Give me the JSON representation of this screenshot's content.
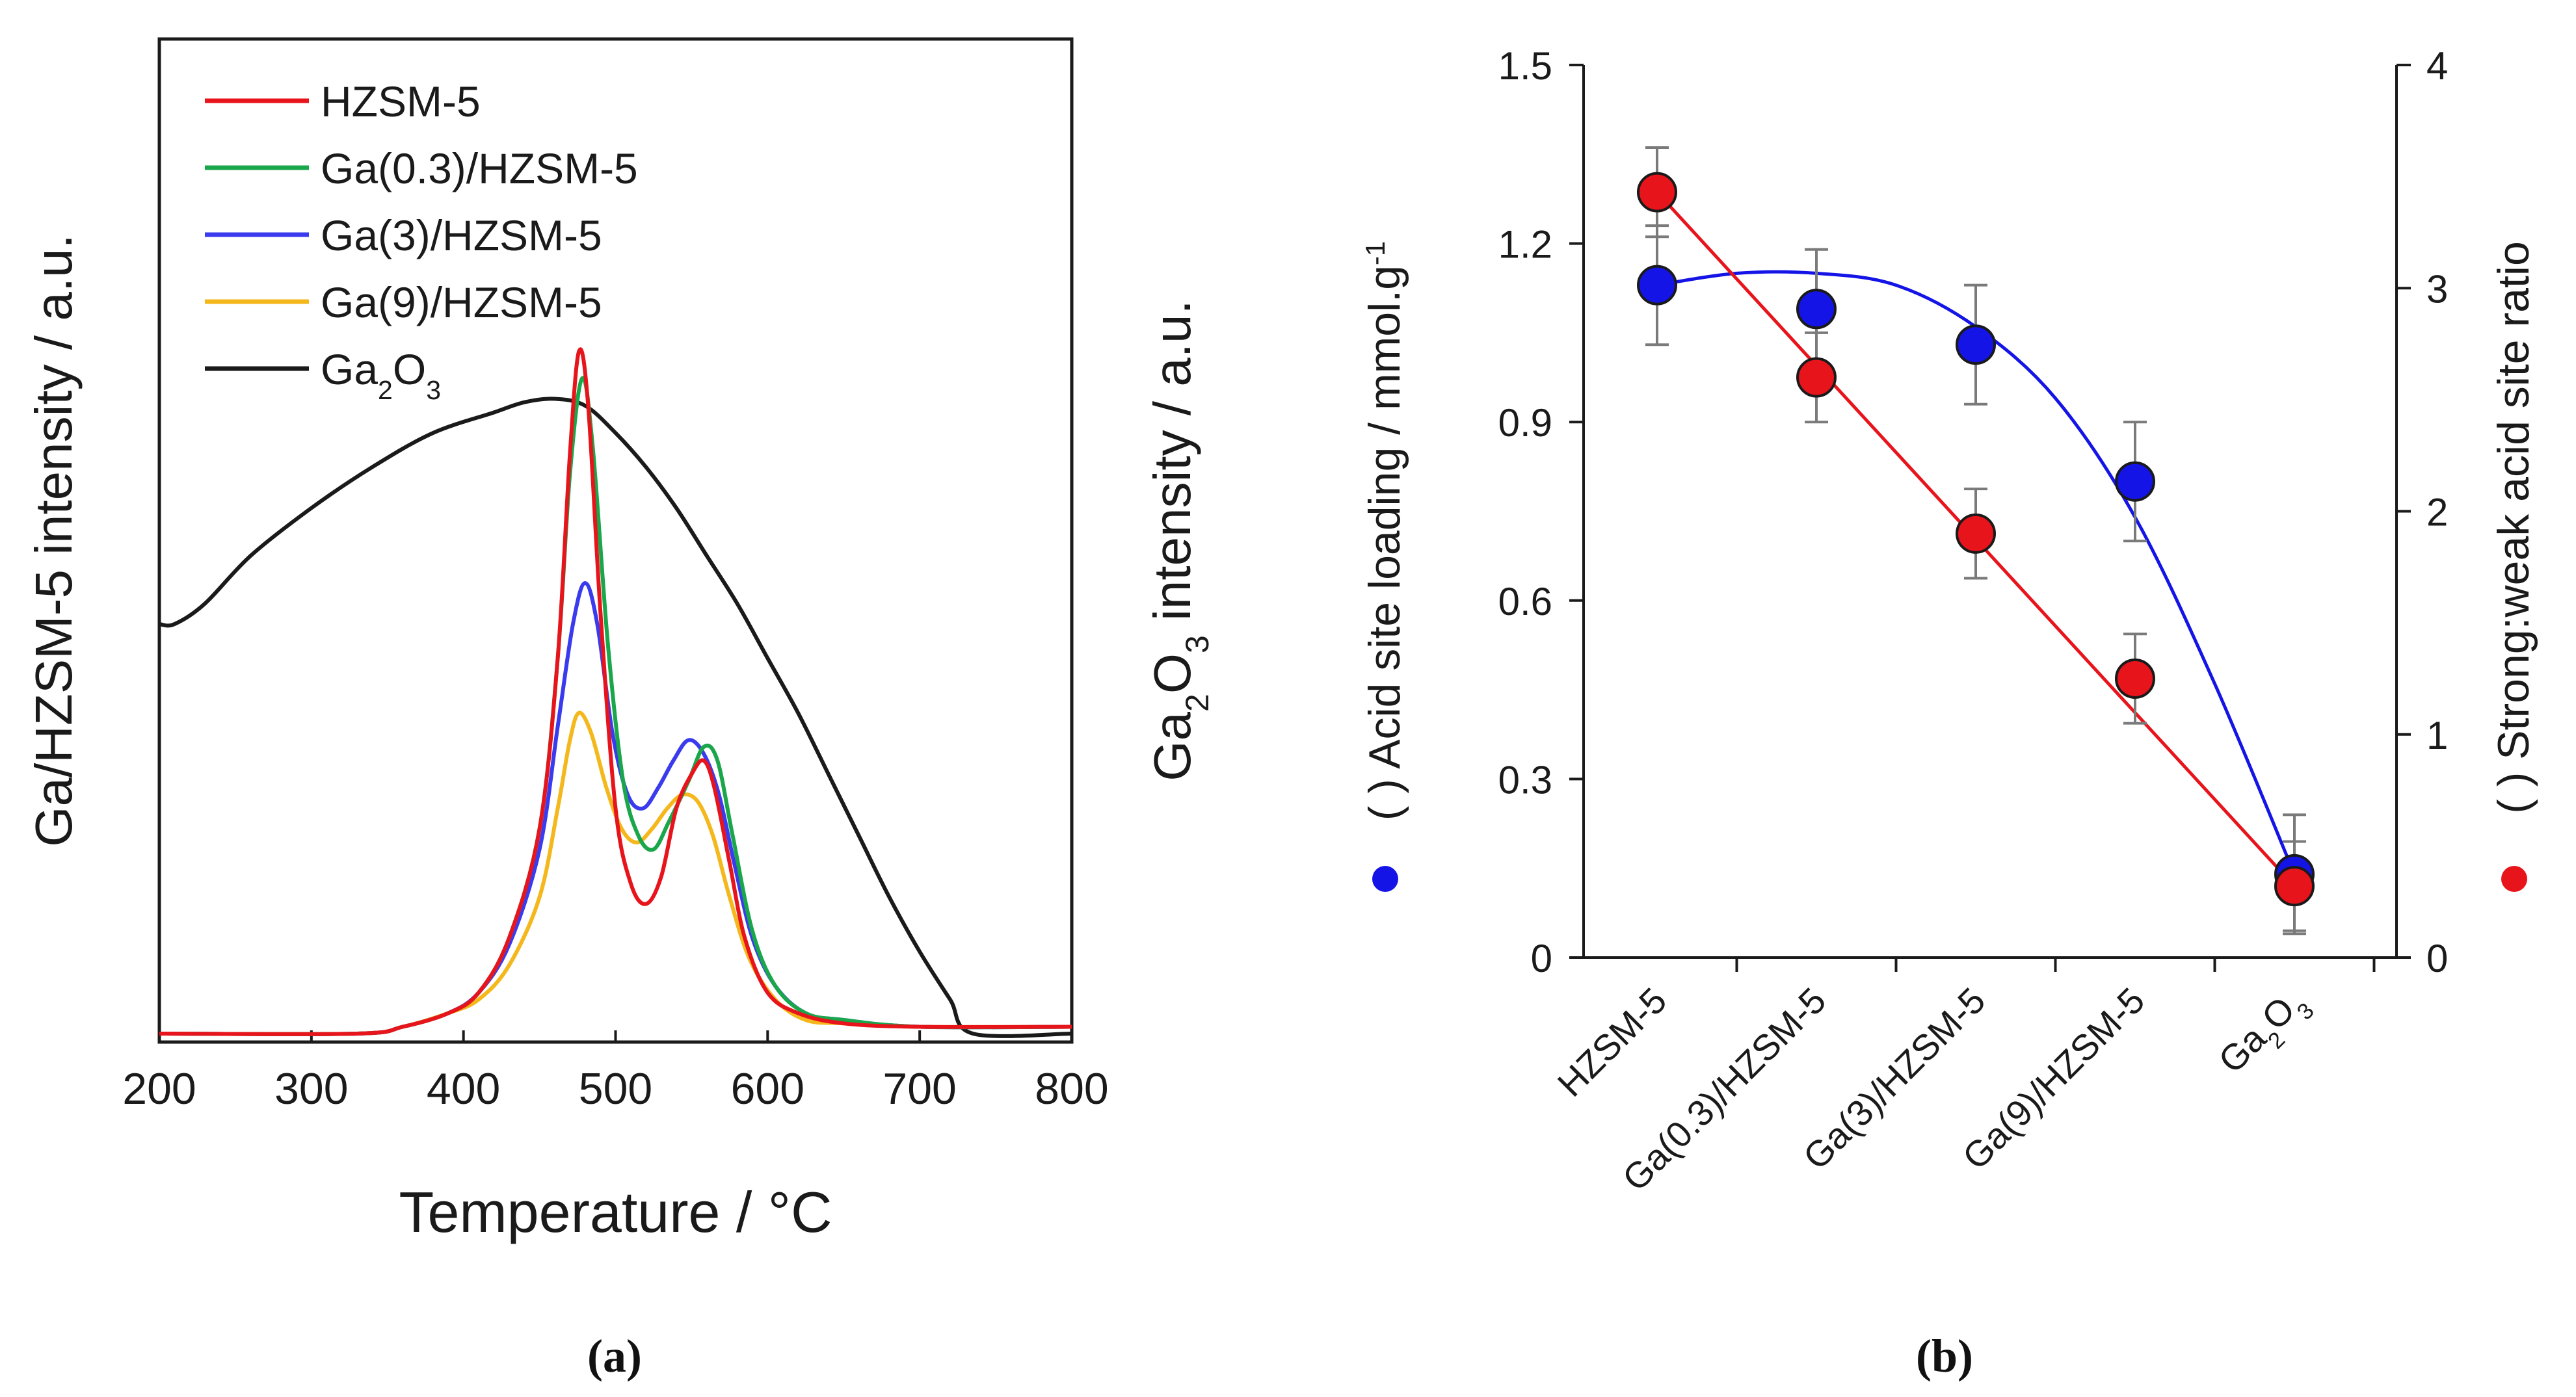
{
  "chart_data": [
    {
      "id": "a",
      "type": "line",
      "panel_label": "(a)",
      "xlabel": "Temperature / °C",
      "ylabel_left": "Ga/HZSM-5 intensity / a.u.",
      "ylabel_right_parts": [
        "Ga",
        "2",
        "O",
        "3",
        " intensity / a.u."
      ],
      "xlim": [
        200,
        800
      ],
      "x_ticks": [
        "200",
        "300",
        "400",
        "500",
        "600",
        "700",
        "800"
      ],
      "legend_position": "top-left",
      "series": [
        {
          "name": "HZSM-5",
          "color": "#e8141c",
          "points": [
            [
              200,
              0
            ],
            [
              330,
              0
            ],
            [
              360,
              0.01
            ],
            [
              390,
              0.03
            ],
            [
              410,
              0.06
            ],
            [
              430,
              0.14
            ],
            [
              450,
              0.3
            ],
            [
              462,
              0.55
            ],
            [
              470,
              0.85
            ],
            [
              476,
              1.0
            ],
            [
              482,
              0.92
            ],
            [
              490,
              0.62
            ],
            [
              500,
              0.33
            ],
            [
              510,
              0.22
            ],
            [
              520,
              0.19
            ],
            [
              530,
              0.23
            ],
            [
              540,
              0.33
            ],
            [
              550,
              0.38
            ],
            [
              558,
              0.4
            ],
            [
              565,
              0.36
            ],
            [
              575,
              0.25
            ],
            [
              585,
              0.14
            ],
            [
              600,
              0.06
            ],
            [
              620,
              0.03
            ],
            [
              650,
              0.015
            ],
            [
              700,
              0.01
            ],
            [
              800,
              0.01
            ]
          ]
        },
        {
          "name": "Ga(0.3)/HZSM-5",
          "color": "#1aa64a",
          "points": [
            [
              200,
              0
            ],
            [
              330,
              0
            ],
            [
              360,
              0.01
            ],
            [
              390,
              0.03
            ],
            [
              410,
              0.06
            ],
            [
              430,
              0.14
            ],
            [
              450,
              0.3
            ],
            [
              462,
              0.55
            ],
            [
              470,
              0.82
            ],
            [
              478,
              0.96
            ],
            [
              485,
              0.86
            ],
            [
              495,
              0.57
            ],
            [
              505,
              0.37
            ],
            [
              515,
              0.29
            ],
            [
              525,
              0.27
            ],
            [
              535,
              0.31
            ],
            [
              548,
              0.37
            ],
            [
              558,
              0.42
            ],
            [
              567,
              0.4
            ],
            [
              577,
              0.29
            ],
            [
              590,
              0.15
            ],
            [
              605,
              0.07
            ],
            [
              625,
              0.03
            ],
            [
              650,
              0.02
            ],
            [
              700,
              0.01
            ],
            [
              800,
              0.01
            ]
          ]
        },
        {
          "name": "Ga(3)/HZSM-5",
          "color": "#3a3aef",
          "points": [
            [
              200,
              0
            ],
            [
              330,
              0
            ],
            [
              360,
              0.01
            ],
            [
              390,
              0.03
            ],
            [
              410,
              0.06
            ],
            [
              430,
              0.13
            ],
            [
              450,
              0.27
            ],
            [
              462,
              0.45
            ],
            [
              472,
              0.6
            ],
            [
              480,
              0.66
            ],
            [
              488,
              0.6
            ],
            [
              498,
              0.44
            ],
            [
              508,
              0.35
            ],
            [
              518,
              0.33
            ],
            [
              528,
              0.36
            ],
            [
              538,
              0.4
            ],
            [
              548,
              0.43
            ],
            [
              558,
              0.41
            ],
            [
              568,
              0.35
            ],
            [
              578,
              0.25
            ],
            [
              590,
              0.14
            ],
            [
              605,
              0.07
            ],
            [
              625,
              0.03
            ],
            [
              650,
              0.02
            ],
            [
              700,
              0.01
            ],
            [
              800,
              0.01
            ]
          ]
        },
        {
          "name": "Ga(9)/HZSM-5",
          "color": "#f4b81c",
          "points": [
            [
              200,
              0
            ],
            [
              330,
              0
            ],
            [
              360,
              0.01
            ],
            [
              390,
              0.03
            ],
            [
              410,
              0.05
            ],
            [
              430,
              0.1
            ],
            [
              450,
              0.2
            ],
            [
              462,
              0.33
            ],
            [
              470,
              0.43
            ],
            [
              476,
              0.47
            ],
            [
              484,
              0.44
            ],
            [
              494,
              0.36
            ],
            [
              504,
              0.3
            ],
            [
              514,
              0.28
            ],
            [
              524,
              0.3
            ],
            [
              534,
              0.33
            ],
            [
              544,
              0.35
            ],
            [
              554,
              0.34
            ],
            [
              564,
              0.29
            ],
            [
              575,
              0.2
            ],
            [
              588,
              0.11
            ],
            [
              605,
              0.05
            ],
            [
              625,
              0.02
            ],
            [
              650,
              0.015
            ],
            [
              700,
              0.01
            ],
            [
              800,
              0.01
            ]
          ]
        },
        {
          "name": "Ga2O3",
          "name_parts": [
            "Ga",
            "2",
            "O",
            "3"
          ],
          "color": "#1a1a1a",
          "points": [
            [
              200,
              0.6
            ],
            [
              210,
              0.6
            ],
            [
              230,
              0.63
            ],
            [
              260,
              0.7
            ],
            [
              300,
              0.77
            ],
            [
              340,
              0.83
            ],
            [
              380,
              0.88
            ],
            [
              420,
              0.91
            ],
            [
              440,
              0.925
            ],
            [
              460,
              0.93
            ],
            [
              480,
              0.92
            ],
            [
              500,
              0.88
            ],
            [
              520,
              0.83
            ],
            [
              540,
              0.77
            ],
            [
              560,
              0.7
            ],
            [
              580,
              0.63
            ],
            [
              600,
              0.55
            ],
            [
              620,
              0.47
            ],
            [
              640,
              0.38
            ],
            [
              660,
              0.29
            ],
            [
              680,
              0.2
            ],
            [
              700,
              0.12
            ],
            [
              720,
              0.05
            ],
            [
              735,
              0.0
            ],
            [
              800,
              0.0
            ]
          ]
        }
      ]
    },
    {
      "id": "b",
      "type": "scatter",
      "panel_label": "(b)",
      "ylabel_left": "( ) Acid site loading / mmol.g",
      "ylabel_left_sup": "-1",
      "ylabel_right": "( ) Strong:weak acid site ratio",
      "categories": [
        "HZSM-5",
        "Ga(0.3)/HZSM-5",
        "Ga(3)/HZSM-5",
        "Ga(9)/HZSM-5",
        "Ga2O3"
      ],
      "category_labels": [
        [
          "HZSM-5"
        ],
        [
          "Ga(0.3)/HZSM-5"
        ],
        [
          "Ga(3)/HZSM-5"
        ],
        [
          "Ga(9)/HZSM-5"
        ],
        [
          "Ga",
          "2",
          "O",
          "3"
        ]
      ],
      "ylim_left": [
        0,
        1.5
      ],
      "ylim_right": [
        0,
        4
      ],
      "y_ticks_left": [
        "0",
        "0.3",
        "0.6",
        "0.9",
        "1.2",
        "1.5"
      ],
      "y_ticks_right": [
        "0",
        "1",
        "2",
        "3",
        "4"
      ],
      "series": [
        {
          "name": "Acid site loading",
          "axis": "left",
          "color": "#1414e6",
          "values": [
            1.13,
            1.09,
            1.03,
            0.8,
            0.14
          ],
          "errors": [
            0.1,
            0.1,
            0.1,
            0.1,
            0.1
          ],
          "fit": [
            [
              0,
              1.13
            ],
            [
              0.5,
              1.15
            ],
            [
              1,
              1.15
            ],
            [
              1.5,
              1.13
            ],
            [
              2,
              1.06
            ],
            [
              2.5,
              0.94
            ],
            [
              3,
              0.74
            ],
            [
              3.5,
              0.46
            ],
            [
              4,
              0.14
            ]
          ]
        },
        {
          "name": "Strong:weak acid site ratio",
          "axis": "right",
          "color": "#e8141c",
          "values": [
            3.43,
            2.6,
            1.9,
            1.25,
            0.32
          ],
          "errors": [
            0.2,
            0.2,
            0.2,
            0.2,
            0.2
          ],
          "fit": [
            [
              0,
              3.43
            ],
            [
              4,
              0.32
            ]
          ]
        }
      ]
    }
  ]
}
